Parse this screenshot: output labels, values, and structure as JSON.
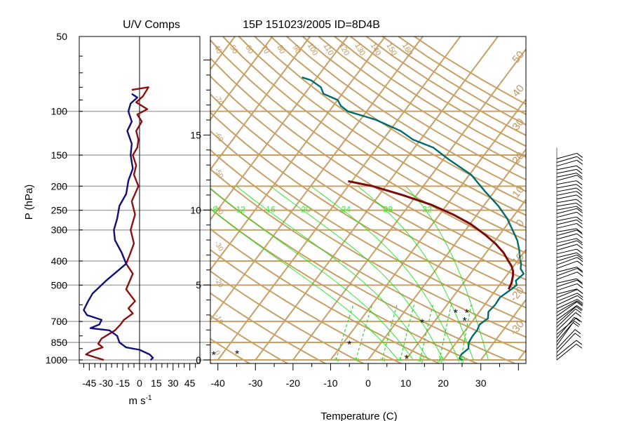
{
  "colors": {
    "skewt_grid": "#c8a066",
    "mixing_ratio": "#2fd22f",
    "moist_adiabat": "#00e600",
    "temperature": "#7a0c0c",
    "dewpoint": "#006b6b",
    "u_component": "#8b1010",
    "v_component": "#10107a",
    "pressure_gridline": "#aaaaaa"
  },
  "chart_data": [
    {
      "type": "line",
      "panel": "wind-components",
      "title": "U/V Comps",
      "ylabel": "P (hPa)",
      "xlabel": "m s",
      "xlabel_superscript": "-1",
      "y_scale": "log",
      "y_reversed": true,
      "ylim": [
        50,
        1000
      ],
      "xlim": [
        -54,
        54
      ],
      "x_ticks": [
        "-45",
        "-30",
        "-15",
        "0",
        "15",
        "30",
        "45"
      ],
      "y_ticks": [
        "50",
        "100",
        "150",
        "200",
        "250",
        "300",
        "400",
        "500",
        "700",
        "850",
        "1000"
      ],
      "gridlines_at": [
        100,
        150,
        200,
        250,
        300,
        400,
        500,
        700,
        850,
        1000
      ],
      "series": [
        {
          "color": "u_component",
          "points": [
            [
              -7,
              82
            ],
            [
              8,
              80
            ],
            [
              3,
              87
            ],
            [
              -3,
              92
            ],
            [
              7,
              98
            ],
            [
              -2,
              103
            ],
            [
              2,
              110
            ],
            [
              -3,
              120
            ],
            [
              -1,
              130
            ],
            [
              -2,
              140
            ],
            [
              -6,
              150
            ],
            [
              -3,
              165
            ],
            [
              -5,
              180
            ],
            [
              -1,
              200
            ],
            [
              -7,
              230
            ],
            [
              -4,
              260
            ],
            [
              -8,
              300
            ],
            [
              -5,
              340
            ],
            [
              -9,
              380
            ],
            [
              -12,
              410
            ],
            [
              -6,
              450
            ],
            [
              -12,
              520
            ],
            [
              -4,
              580
            ],
            [
              -10,
              620
            ],
            [
              -6,
              650
            ],
            [
              -14,
              690
            ],
            [
              -17,
              720
            ],
            [
              -22,
              760
            ],
            [
              -28,
              790
            ],
            [
              -34,
              820
            ],
            [
              -37,
              860
            ],
            [
              -33,
              890
            ],
            [
              -43,
              920
            ],
            [
              -48,
              950
            ],
            [
              -40,
              975
            ],
            [
              -32,
              1000
            ]
          ]
        },
        {
          "color": "v_component",
          "points": [
            [
              -7,
              85
            ],
            [
              -2,
              88
            ],
            [
              -8,
              93
            ],
            [
              -10,
              100
            ],
            [
              -7,
              110
            ],
            [
              -11,
              120
            ],
            [
              -7,
              135
            ],
            [
              -8,
              150
            ],
            [
              -6,
              170
            ],
            [
              -10,
              190
            ],
            [
              -12,
              215
            ],
            [
              -18,
              240
            ],
            [
              -20,
              270
            ],
            [
              -23,
              300
            ],
            [
              -22,
              330
            ],
            [
              -16,
              370
            ],
            [
              -12,
              410
            ],
            [
              -20,
              440
            ],
            [
              -30,
              480
            ],
            [
              -42,
              540
            ],
            [
              -46,
              580
            ],
            [
              -50,
              630
            ],
            [
              -47,
              660
            ],
            [
              -34,
              690
            ],
            [
              -36,
              720
            ],
            [
              -44,
              745
            ],
            [
              -27,
              760
            ],
            [
              -20,
              800
            ],
            [
              -18,
              850
            ],
            [
              -12,
              890
            ],
            [
              0,
              910
            ],
            [
              9,
              950
            ],
            [
              12,
              980
            ],
            [
              10,
              1000
            ]
          ]
        }
      ]
    },
    {
      "type": "line",
      "panel": "skew-t",
      "title": "15P 151023/2005 ID=8D4B",
      "xlabel": "Temperature (C)",
      "x_ticks": [
        "-40",
        "-30",
        "-20",
        "-10",
        "0",
        "10",
        "20",
        "30"
      ],
      "height_ticks": [
        "0",
        "5",
        "10",
        "15"
      ],
      "xlim": [
        -42,
        42
      ],
      "y_scale": "log",
      "y_reversed": true,
      "ylim": [
        50,
        1000
      ],
      "skew_labels_top": [
        "40",
        "50",
        "60",
        "70",
        "80",
        "90",
        "100",
        "110",
        "120",
        "130",
        "140",
        "150",
        "160"
      ],
      "skew_labels_right": [
        "50",
        "40",
        "30",
        "20",
        "10",
        "0",
        "-10",
        "-20",
        "-30"
      ],
      "dry_adiabat_labels_left": [
        "-70",
        "-60",
        "-50",
        "-40",
        "-30",
        "-20",
        "-10",
        "0"
      ],
      "mixing_ratio_labels": [
        "8",
        "12",
        "16",
        "20",
        "24",
        "28",
        "32"
      ],
      "mixing_ratio_bottom_labels": [
        "2",
        "3",
        "5",
        "7",
        "10",
        "14",
        "20"
      ],
      "series": [
        {
          "name": "",
          "color": "dewpoint",
          "points": [
            [
              25.2,
              1000
            ],
            [
              24,
              985
            ],
            [
              23.7,
              950
            ],
            [
              24.4,
              900
            ],
            [
              23.3,
              850
            ],
            [
              23,
              800
            ],
            [
              23.1,
              760
            ],
            [
              22.6,
              720
            ],
            [
              23.6,
              680
            ],
            [
              22.4,
              640
            ],
            [
              22.8,
              600
            ],
            [
              22.6,
              560
            ],
            [
              24,
              520
            ],
            [
              24.6,
              500
            ],
            [
              23.5,
              480
            ],
            [
              24.2,
              450
            ],
            [
              22.4,
              430
            ],
            [
              21.5,
              410
            ],
            [
              20.1,
              390
            ],
            [
              18.2,
              360
            ],
            [
              15.8,
              330
            ],
            [
              12.5,
              300
            ],
            [
              8.8,
              270
            ],
            [
              3.9,
              240
            ],
            [
              -2.5,
              210
            ],
            [
              -9.5,
              180
            ],
            [
              -19,
              155
            ],
            [
              -25,
              140
            ],
            [
              -32,
              130
            ],
            [
              -37,
              120
            ],
            [
              -46,
              108
            ],
            [
              -55,
              100
            ],
            [
              -58,
              95
            ],
            [
              -60,
              90
            ],
            [
              -65,
              85
            ],
            [
              -67,
              80
            ],
            [
              -71,
              75
            ],
            [
              -74,
              73
            ]
          ]
        },
        {
          "name": "",
          "color": "temperature",
          "points": [
            [
              23.3,
              520
            ],
            [
              22.8,
              490
            ],
            [
              21.8,
              460
            ],
            [
              20.9,
              440
            ],
            [
              19.5,
              420
            ],
            [
              17.6,
              400
            ],
            [
              14.6,
              370
            ],
            [
              10.6,
              340
            ],
            [
              6.4,
              315
            ],
            [
              0.4,
              285
            ],
            [
              -6.4,
              260
            ],
            [
              -14,
              238
            ],
            [
              -23.8,
              217
            ],
            [
              -33.5,
              200
            ],
            [
              -41,
              191
            ]
          ]
        }
      ],
      "markers": [
        [
          -42,
          960
        ],
        [
          -36,
          950
        ],
        [
          10,
          990
        ],
        [
          18,
          700
        ],
        [
          14,
          650
        ],
        [
          -8,
          870
        ],
        [
          7,
          710
        ],
        [
          17,
          650
        ]
      ]
    }
  ]
}
